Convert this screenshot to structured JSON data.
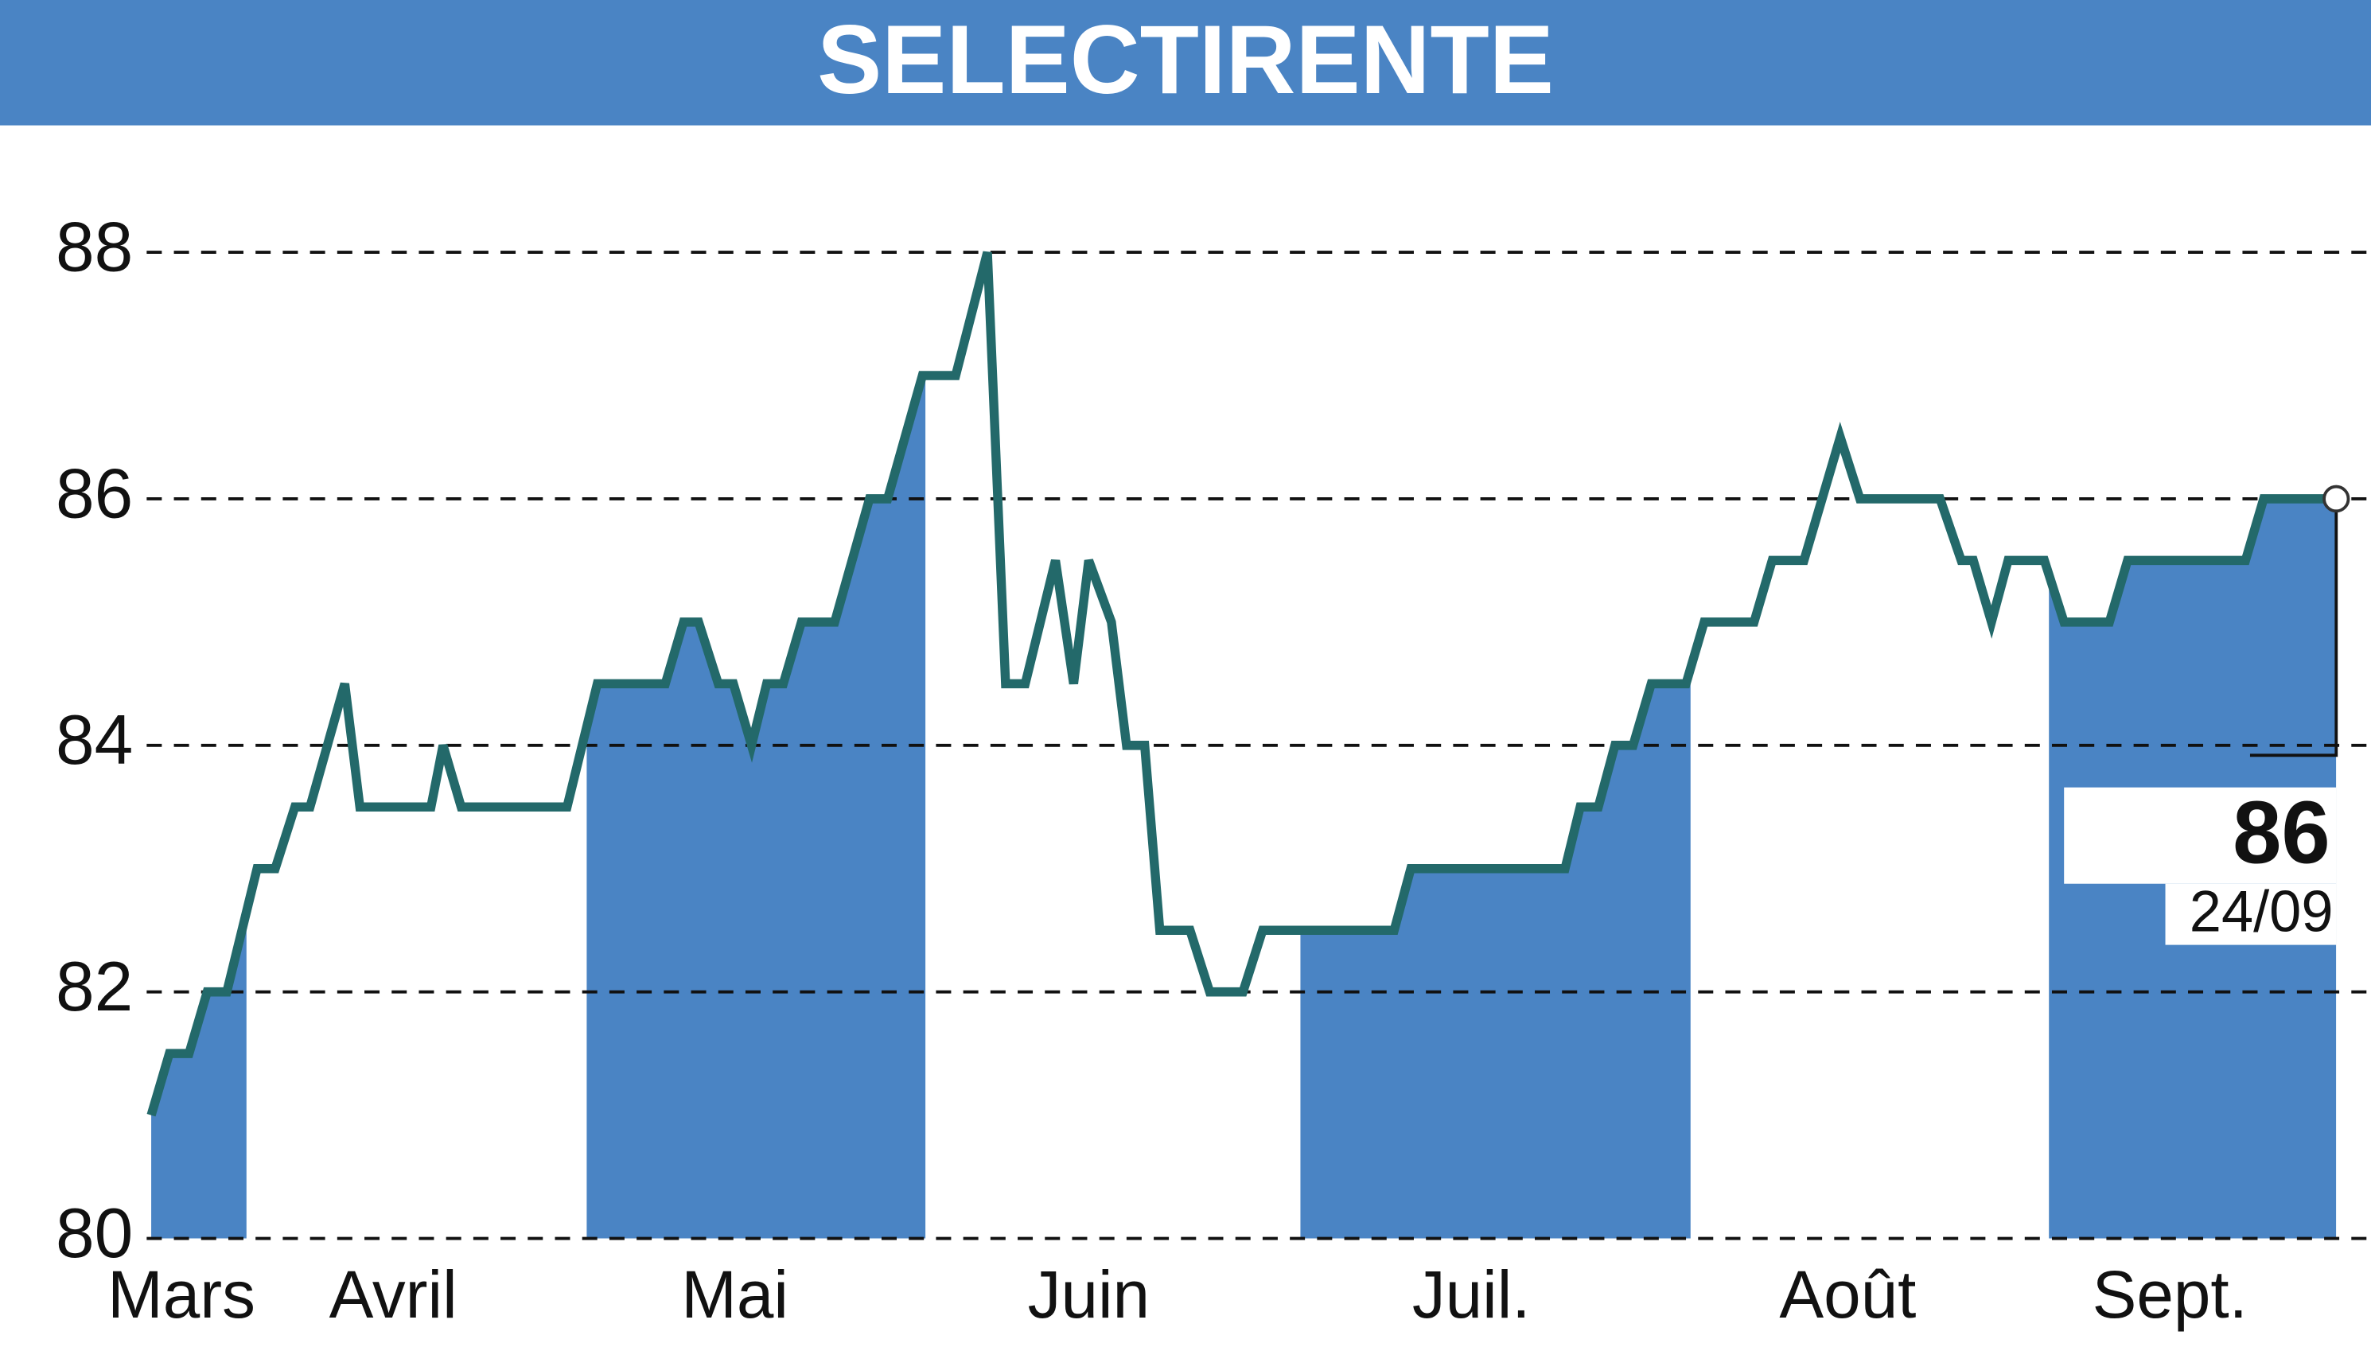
{
  "chart_data": {
    "type": "line",
    "title": "SELECTIRENTE",
    "months": [
      "Mars",
      "Avril",
      "Mai",
      "Juin",
      "Juil.",
      "Août",
      "Sept."
    ],
    "values": [
      81,
      81.5,
      81.5,
      82,
      82,
      83,
      83,
      83.5,
      83.5,
      84.5,
      83.5,
      83.5,
      84,
      83.5,
      83.5,
      84.5,
      84.5,
      85,
      85,
      84.5,
      84.5,
      84,
      84.5,
      84.5,
      85,
      85,
      86,
      86,
      87,
      87,
      88,
      84.5,
      84.5,
      85.5,
      84.5,
      85.5,
      85,
      84,
      84,
      82.5,
      82.5,
      82,
      82,
      82.5,
      82.5,
      83,
      83,
      83.5,
      83.5,
      84,
      84,
      84.5,
      84.5,
      85,
      85,
      85.5,
      85.5,
      86.5,
      86,
      86,
      85.5,
      85.5,
      85,
      85.5,
      85.5,
      85,
      85,
      85.5,
      85.5,
      86,
      86
    ],
    "color": "#23696a",
    "fill_color": "#4a84c4",
    "ylim": [
      80,
      88
    ],
    "yticks": [
      80,
      82,
      84,
      86,
      88
    ],
    "grid": true,
    "last_value": 86,
    "last_date": "24/09"
  }
}
